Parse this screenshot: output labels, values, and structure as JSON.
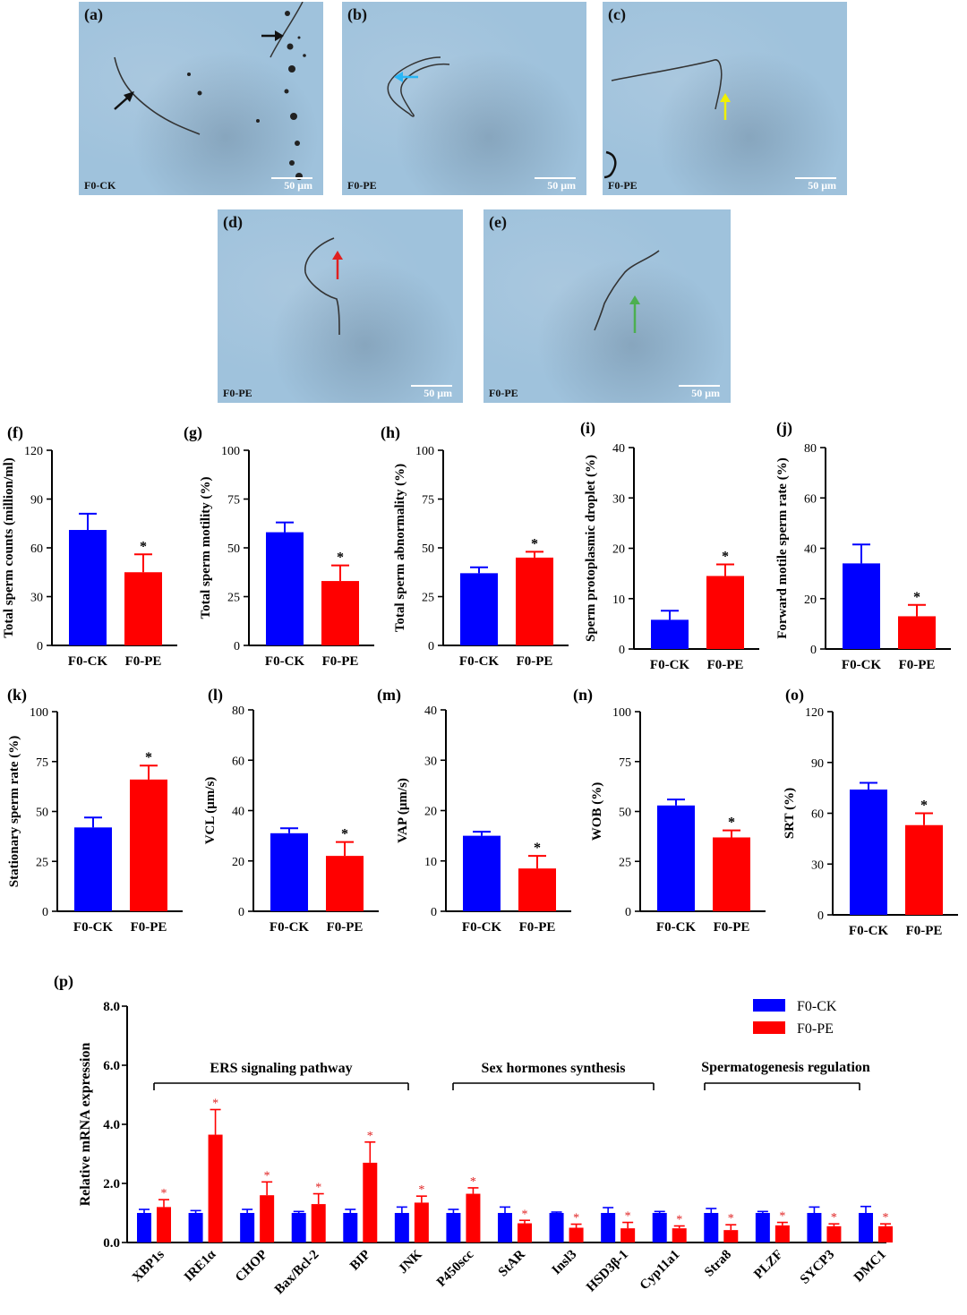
{
  "micrographs": [
    {
      "label": "(a)",
      "group": "F0-CK",
      "scale": "50 μm",
      "arrow_color": "#111111"
    },
    {
      "label": "(b)",
      "group": "F0-PE",
      "scale": "50 μm",
      "arrow_color": "#29b6f6"
    },
    {
      "label": "(c)",
      "group": "F0-PE",
      "scale": "50 μm",
      "arrow_color": "#f0f000"
    },
    {
      "label": "(d)",
      "group": "F0-PE",
      "scale": "50 μm",
      "arrow_color": "#e02020"
    },
    {
      "label": "(e)",
      "group": "F0-PE",
      "scale": "50 μm",
      "arrow_color": "#4caf50"
    }
  ],
  "colors": {
    "ck": "#0000ff",
    "pe": "#ff0000"
  },
  "chart_data": [
    {
      "panel": "(f)",
      "type": "bar",
      "categories": [
        "F0-CK",
        "F0-PE"
      ],
      "values": [
        71,
        45
      ],
      "errors": [
        10,
        11
      ],
      "ylabel": "Total sperm counts (million/ml)",
      "ylim": [
        0,
        120
      ],
      "ticks": [
        0,
        30,
        60,
        90,
        120
      ],
      "sig": [
        "",
        "*"
      ]
    },
    {
      "panel": "(g)",
      "type": "bar",
      "categories": [
        "F0-CK",
        "F0-PE"
      ],
      "values": [
        58,
        33
      ],
      "errors": [
        5,
        8
      ],
      "ylabel": "Total sperm motility (%)",
      "ylim": [
        0,
        100
      ],
      "ticks": [
        0,
        25,
        50,
        75,
        100
      ],
      "sig": [
        "",
        "*"
      ]
    },
    {
      "panel": "(h)",
      "type": "bar",
      "categories": [
        "F0-CK",
        "F0-PE"
      ],
      "values": [
        37,
        45
      ],
      "errors": [
        3,
        3
      ],
      "ylabel": "Total sperm abnormality (%)",
      "ylim": [
        0,
        100
      ],
      "ticks": [
        0,
        25,
        50,
        75,
        100
      ],
      "sig": [
        "",
        "*"
      ]
    },
    {
      "panel": "(i)",
      "type": "bar",
      "categories": [
        "F0-CK",
        "F0-PE"
      ],
      "values": [
        5.8,
        14.5
      ],
      "errors": [
        1.8,
        2.3
      ],
      "ylabel": "Sperm protoplasmic droplet (%)",
      "ylim": [
        0,
        40
      ],
      "ticks": [
        0,
        10,
        20,
        30,
        40
      ],
      "sig": [
        "",
        "*"
      ]
    },
    {
      "panel": "(j)",
      "type": "bar",
      "categories": [
        "F0-CK",
        "F0-PE"
      ],
      "values": [
        34,
        13
      ],
      "errors": [
        7.5,
        4.5
      ],
      "ylabel": "Forward motile sperm rate (%)",
      "ylim": [
        0,
        80
      ],
      "ticks": [
        0,
        20,
        40,
        60,
        80
      ],
      "sig": [
        "",
        "*"
      ]
    },
    {
      "panel": "(k)",
      "type": "bar",
      "categories": [
        "F0-CK",
        "F0-PE"
      ],
      "values": [
        42,
        66
      ],
      "errors": [
        5,
        7
      ],
      "ylabel": "Stationary sperm rate (%)",
      "ylim": [
        0,
        100
      ],
      "ticks": [
        0,
        25,
        50,
        75,
        100
      ],
      "sig": [
        "",
        "*"
      ]
    },
    {
      "panel": "(l)",
      "type": "bar",
      "categories": [
        "F0-CK",
        "F0-PE"
      ],
      "values": [
        31,
        22
      ],
      "errors": [
        2,
        5.5
      ],
      "ylabel": "VCL (μm/s)",
      "ylim": [
        0,
        80
      ],
      "ticks": [
        0,
        20,
        40,
        60,
        80
      ],
      "sig": [
        "",
        "*"
      ]
    },
    {
      "panel": "(m)",
      "type": "bar",
      "categories": [
        "F0-CK",
        "F0-PE"
      ],
      "values": [
        15,
        8.5
      ],
      "errors": [
        0.8,
        2.5
      ],
      "ylabel": "VAP (μm/s)",
      "ylim": [
        0,
        40
      ],
      "ticks": [
        0,
        10,
        20,
        30,
        40
      ],
      "sig": [
        "",
        "*"
      ]
    },
    {
      "panel": "(n)",
      "type": "bar",
      "categories": [
        "F0-CK",
        "F0-PE"
      ],
      "values": [
        53,
        37
      ],
      "errors": [
        3,
        3.5
      ],
      "ylabel": "WOB (%)",
      "ylim": [
        0,
        100
      ],
      "ticks": [
        0,
        25,
        50,
        75,
        100
      ],
      "sig": [
        "",
        "*"
      ]
    },
    {
      "panel": "(o)",
      "type": "bar",
      "categories": [
        "F0-CK",
        "F0-PE"
      ],
      "values": [
        74,
        53
      ],
      "errors": [
        4,
        7
      ],
      "ylabel": "SRT (%)",
      "ylim": [
        0,
        120
      ],
      "ticks": [
        0,
        30,
        60,
        90,
        120
      ],
      "sig": [
        "",
        "*"
      ]
    },
    {
      "panel": "(p)",
      "type": "bar",
      "categories": [
        "XBP1s",
        "IRE1α",
        "CHOP",
        "Bax/Bcl-2",
        "BIP",
        "JNK",
        "P450scc",
        "StAR",
        "Insl3",
        "HSD3β-1",
        "Cyp11a1",
        "Stra8",
        "PLZF",
        "SYCP3",
        "DMC1"
      ],
      "series": [
        {
          "name": "F0-CK",
          "values": [
            1.0,
            1.0,
            1.0,
            1.0,
            1.0,
            1.0,
            1.0,
            1.0,
            1.0,
            1.0,
            1.0,
            1.0,
            1.0,
            1.0,
            1.0
          ],
          "errors": [
            0.12,
            0.08,
            0.12,
            0.05,
            0.12,
            0.2,
            0.12,
            0.2,
            0.03,
            0.18,
            0.05,
            0.15,
            0.05,
            0.2,
            0.22
          ]
        },
        {
          "name": "F0-PE",
          "values": [
            1.2,
            3.65,
            1.6,
            1.3,
            2.7,
            1.35,
            1.65,
            0.65,
            0.5,
            0.48,
            0.48,
            0.42,
            0.58,
            0.55,
            0.55
          ],
          "errors": [
            0.25,
            0.85,
            0.45,
            0.35,
            0.7,
            0.22,
            0.2,
            0.1,
            0.12,
            0.2,
            0.08,
            0.18,
            0.1,
            0.08,
            0.08
          ]
        }
      ],
      "sig": [
        "*",
        "*",
        "*",
        "*",
        "*",
        "*",
        "*",
        "*",
        "*",
        "*",
        "*",
        "*",
        "*",
        "*",
        "*"
      ],
      "ylabel": "Relative mRNA expression",
      "ylim": [
        0,
        8
      ],
      "ticks": [
        "0.0",
        "2.0",
        "4.0",
        "6.0",
        "8.0"
      ],
      "groups": [
        "ERS signaling pathway",
        "Sex hormones synthesis",
        "Spermatogenesis regulation"
      ],
      "legend": "top-right"
    }
  ]
}
